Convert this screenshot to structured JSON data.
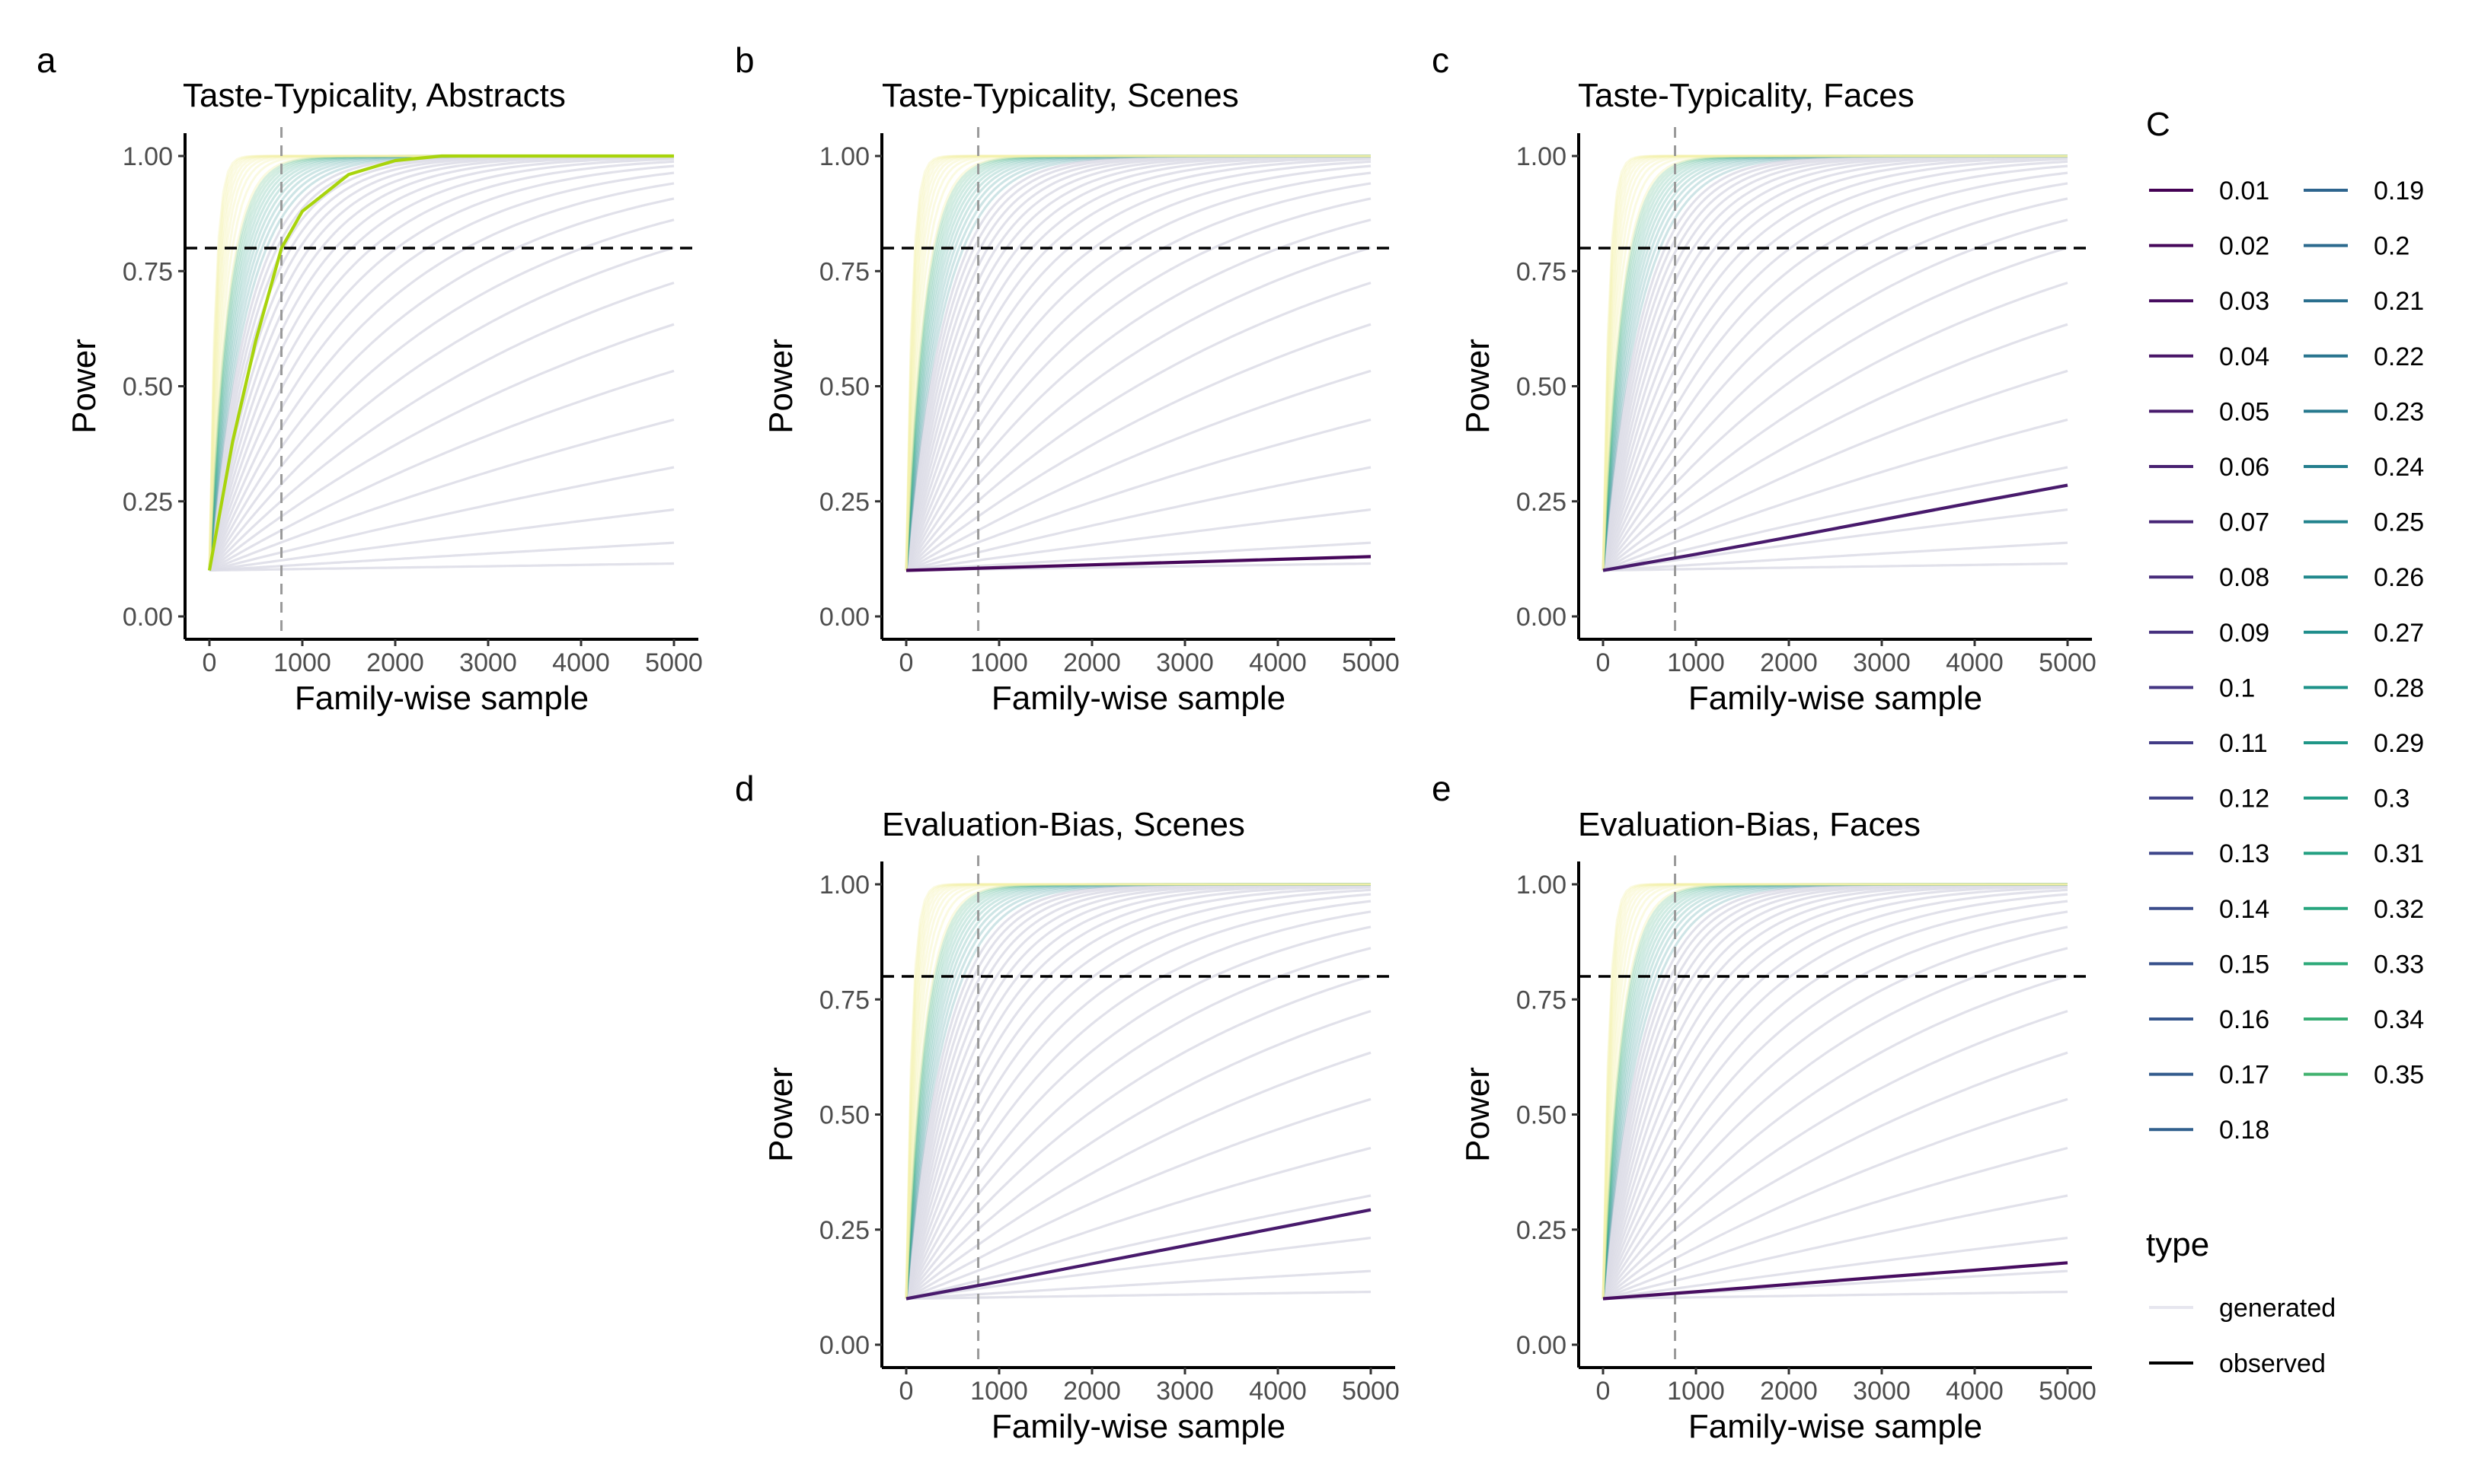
{
  "figure": {
    "legend_c": {
      "title": "C",
      "entries": [
        "0.01",
        "0.02",
        "0.03",
        "0.04",
        "0.05",
        "0.06",
        "0.07",
        "0.08",
        "0.09",
        "0.1",
        "0.11",
        "0.12",
        "0.13",
        "0.14",
        "0.15",
        "0.16",
        "0.17",
        "0.18",
        "0.19",
        "0.2",
        "0.21",
        "0.22",
        "0.23",
        "0.24",
        "0.25",
        "0.26",
        "0.27",
        "0.28",
        "0.29",
        "0.3",
        "0.31",
        "0.32",
        "0.33",
        "0.34",
        "0.35"
      ],
      "colors": [
        "#440154",
        "#46075a",
        "#470d60",
        "#481467",
        "#481a6c",
        "#482071",
        "#472576",
        "#472b7a",
        "#46307e",
        "#443683",
        "#423b86",
        "#404188",
        "#3e468a",
        "#3b4c8b",
        "#38518c",
        "#36568d",
        "#335b8d",
        "#31608d",
        "#2e658e",
        "#2c6a8e",
        "#2a6f8e",
        "#28748e",
        "#26798e",
        "#247e8d",
        "#22838d",
        "#20888c",
        "#1f8d8b",
        "#1e9289",
        "#1f9687",
        "#209b85",
        "#23a082",
        "#27a57e",
        "#2eaa7a",
        "#38ae75",
        "#42b26f"
      ],
      "legend_colors_note": "viridis palette"
    },
    "legend_type": {
      "title": "type",
      "entries": [
        "generated",
        "observed"
      ],
      "colors": [
        "#e6e6ef",
        "#000000"
      ]
    },
    "reference_lines": {
      "power_threshold": 0.8,
      "sample_marker": 775
    }
  },
  "chart_data": [
    {
      "type": "line",
      "panel_letter": "a",
      "title": "Taste-Typicality, Abstracts",
      "xlabel": "Family-wise sample",
      "ylabel": "Power",
      "xlim": [
        0,
        5000
      ],
      "ylim": [
        0,
        1
      ],
      "xticks": [
        "0",
        "1000",
        "2000",
        "3000",
        "4000",
        "5000"
      ],
      "yticks": [
        "0.00",
        "0.25",
        "0.50",
        "0.75",
        "1.00"
      ],
      "series": [
        {
          "name": "observed",
          "C": 0.3,
          "x": [
            0,
            250,
            500,
            775,
            1000,
            1500,
            2000,
            2500,
            3000,
            4000,
            5000
          ],
          "y": [
            0.1,
            0.38,
            0.6,
            0.8,
            0.88,
            0.96,
            0.99,
            1.0,
            1.0,
            1.0,
            1.0
          ]
        }
      ]
    },
    {
      "type": "line",
      "panel_letter": "b",
      "title": "Taste-Typicality, Scenes",
      "xlabel": "Family-wise sample",
      "ylabel": "Power",
      "xlim": [
        0,
        5000
      ],
      "ylim": [
        0,
        1
      ],
      "xticks": [
        "0",
        "1000",
        "2000",
        "3000",
        "4000",
        "5000"
      ],
      "yticks": [
        "0.00",
        "0.25",
        "0.50",
        "0.75",
        "1.00"
      ],
      "series": [
        {
          "name": "observed",
          "C": 0.02,
          "x": [
            0,
            1000,
            2000,
            3000,
            4000,
            5000
          ],
          "y": [
            0.1,
            0.106,
            0.112,
            0.118,
            0.124,
            0.13
          ]
        }
      ]
    },
    {
      "type": "line",
      "panel_letter": "c",
      "title": "Taste-Typicality, Faces",
      "xlabel": "Family-wise sample",
      "ylabel": "Power",
      "xlim": [
        0,
        5000
      ],
      "ylim": [
        0,
        1
      ],
      "xticks": [
        "0",
        "1000",
        "2000",
        "3000",
        "4000",
        "5000"
      ],
      "yticks": [
        "0.00",
        "0.25",
        "0.50",
        "0.75",
        "1.00"
      ],
      "series": [
        {
          "name": "observed",
          "C": 0.05,
          "x": [
            0,
            1000,
            2000,
            3000,
            4000,
            5000
          ],
          "y": [
            0.1,
            0.135,
            0.172,
            0.21,
            0.248,
            0.285
          ]
        }
      ]
    },
    {
      "type": "line",
      "panel_letter": "d",
      "title": "Evaluation-Bias, Scenes",
      "xlabel": "Family-wise sample",
      "ylabel": "Power",
      "xlim": [
        0,
        5000
      ],
      "ylim": [
        0,
        1
      ],
      "xticks": [
        "0",
        "1000",
        "2000",
        "3000",
        "4000",
        "5000"
      ],
      "yticks": [
        "0.00",
        "0.25",
        "0.50",
        "0.75",
        "1.00"
      ],
      "series": [
        {
          "name": "observed",
          "C": 0.05,
          "x": [
            0,
            1000,
            2000,
            3000,
            4000,
            5000
          ],
          "y": [
            0.1,
            0.137,
            0.176,
            0.215,
            0.254,
            0.293
          ]
        }
      ]
    },
    {
      "type": "line",
      "panel_letter": "e",
      "title": "Evaluation-Bias, Faces",
      "xlabel": "Family-wise sample",
      "ylabel": "Power",
      "xlim": [
        0,
        5000
      ],
      "ylim": [
        0,
        1
      ],
      "xticks": [
        "0",
        "1000",
        "2000",
        "3000",
        "4000",
        "5000"
      ],
      "yticks": [
        "0.00",
        "0.25",
        "0.50",
        "0.75",
        "1.00"
      ],
      "series": [
        {
          "name": "observed",
          "C": 0.03,
          "x": [
            0,
            1000,
            2000,
            3000,
            4000,
            5000
          ],
          "y": [
            0.1,
            0.115,
            0.131,
            0.147,
            0.162,
            0.178
          ]
        }
      ]
    }
  ]
}
